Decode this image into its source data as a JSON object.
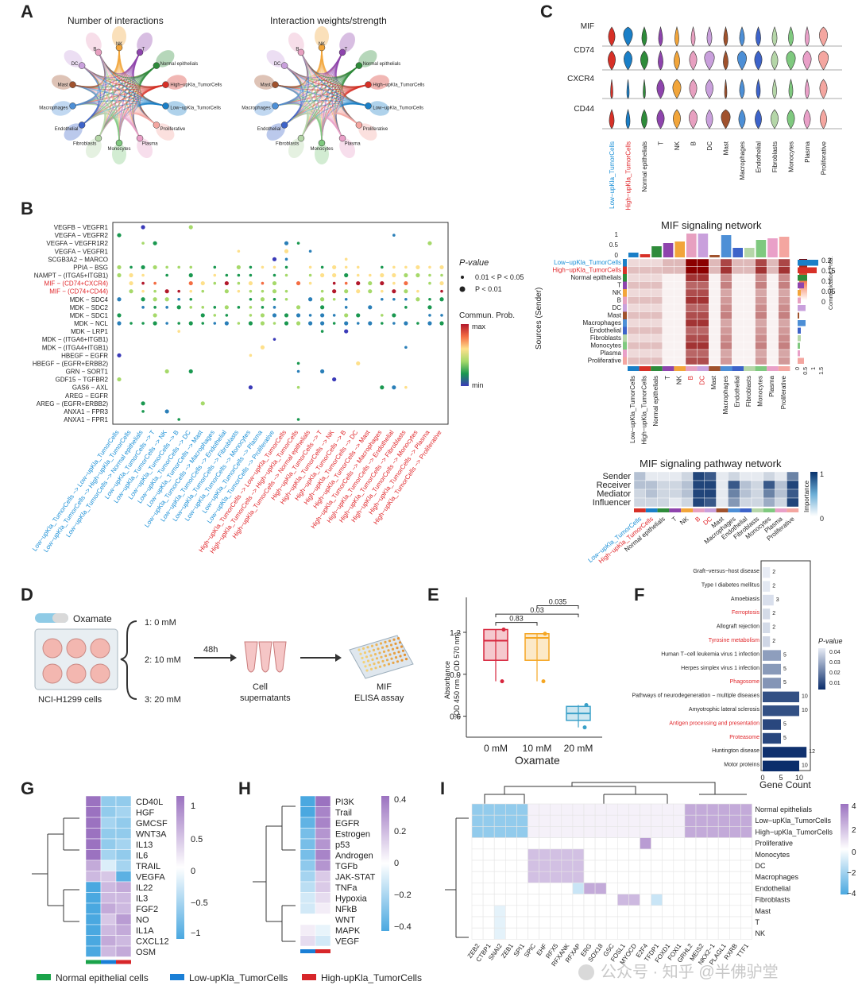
{
  "panel_labels": {
    "A": "A",
    "B": "B",
    "C": "C",
    "D": "D",
    "E": "E",
    "F": "F",
    "G": "G",
    "H": "H",
    "I": "I"
  },
  "panel_a": {
    "titles": [
      "Number of interactions",
      "Interaction weights/strength"
    ],
    "nodes": [
      "NK",
      "T",
      "Normal epithelials",
      "High−upKla_TumorCells",
      "Low−upKla_TumorCells",
      "Proliferative",
      "Plasma",
      "Monocytes",
      "Fibroblasts",
      "Endothelial",
      "Macrophages",
      "Mast",
      "DC",
      "B"
    ],
    "node_colors": [
      "#f2a53a",
      "#8e44ad",
      "#2e8b3a",
      "#d73027",
      "#1a7fc7",
      "#f4a6a0",
      "#e9a0c8",
      "#7fc97f",
      "#b5d6a8",
      "#3d63c9",
      "#4d8fd6",
      "#a0522d",
      "#c9a0dc",
      "#e7a0c0"
    ]
  },
  "panel_b": {
    "ylabels": [
      "VEGFB − VEGFR1",
      "VEGFA − VEGFR2",
      "VEGFA − VEGFR1R2",
      "VEGFA − VEGFR1",
      "SCGB3A2 − MARCO",
      "PPIA − BSG",
      "NAMPT − (ITGA5+ITGB1)",
      "MIF − (CD74+CXCR4)",
      "MIF − (CD74+CD44)",
      "MDK − SDC4",
      "MDK − SDC2",
      "MDK − SDC1",
      "MDK − NCL",
      "MDK − LRP1",
      "MDK − (ITGA6+ITGB1)",
      "MDK − (ITGA4+ITGB1)",
      "HBEGF − EGFR",
      "HBEGF − (EGFR+ERBB2)",
      "GRN − SORT1",
      "GDF15 − TGFBR2",
      "GAS6 − AXL",
      "AREG − EGFR",
      "AREG − (EGFR+ERBB2)",
      "ANXA1 − FPR3",
      "ANXA1 − FPR1"
    ],
    "red_rows": [
      7,
      8
    ],
    "xlabels": [
      "Low−upKla_TumorCells −> Low−upKla_TumorCells",
      "Low−upKla_TumorCells −> High−upKla_TumorCells",
      "Low−upKla_TumorCells −> Normal epithelials",
      "Low−upKla_TumorCells −> T",
      "Low−upKla_TumorCells −> NK",
      "Low−upKla_TumorCells −> B",
      "Low−upKla_TumorCells −> DC",
      "Low−upKla_TumorCells −> Mast",
      "Low−upKla_TumorCells −> Macrophages",
      "Low−upKla_TumorCells −> Endothelial",
      "Low−upKla_TumorCells −> Fibroblasts",
      "Low−upKla_TumorCells −> Monocytes",
      "Low−upKla_TumorCells −> Plasma",
      "Low−upKla_TumorCells −> Proliferative",
      "High−upKla_TumorCells −> Low−upKla_TumorCells",
      "High−upKla_TumorCells −> High−upKla_TumorCells",
      "High−upKla_TumorCells −> Normal epithelials",
      "High−upKla_TumorCells −> T",
      "High−upKla_TumorCells −> NK",
      "High−upKla_TumorCells −> B",
      "High−upKla_TumorCells −> DC",
      "High−upKla_TumorCells −> Mast",
      "High−upKla_TumorCells −> Macrophages",
      "High−upKla_TumorCells −> Endothelial",
      "High−upKla_TumorCells −> Fibroblasts",
      "High−upKla_TumorCells −> Monocytes",
      "High−upKla_TumorCells −> Plasma",
      "High−upKla_TumorCells −> Proliferative"
    ],
    "pvalue_title": "P-value",
    "pvalue_items": [
      "0.01 < P < 0.05",
      "P < 0.01"
    ],
    "prob_title": "Commun. Prob.",
    "prob_max": "max",
    "prob_min": "min"
  },
  "panel_c": {
    "genes": [
      "MIF",
      "CD74",
      "CXCR4",
      "CD44"
    ],
    "cells": [
      "Low−upKla_TumorCells",
      "High−upKla_TumorCells",
      "Normal epithelials",
      "T",
      "NK",
      "B",
      "DC",
      "Mast",
      "Macrophages",
      "Endothelial",
      "Fibroblasts",
      "Monocytes",
      "Plasma",
      "Proliferative"
    ],
    "cell_colors": [
      "#d73027",
      "#1a7fc7",
      "#2e8b3a",
      "#8e44ad",
      "#f2a53a",
      "#e7a0c0",
      "#c9a0dc",
      "#a0522d",
      "#4d8fd6",
      "#3d63c9",
      "#b5d6a8",
      "#7fc97f",
      "#e9a0c8",
      "#f4a6a0"
    ],
    "levels": [
      [
        0.5,
        0.8,
        0.3,
        0.2,
        0.2,
        0.2,
        0.3,
        0.2,
        0.3,
        0.3,
        0.3,
        0.3,
        0.2,
        0.7
      ],
      [
        0.6,
        0.7,
        0.6,
        0.3,
        0.4,
        0.6,
        0.9,
        0.3,
        0.8,
        0.6,
        0.5,
        0.8,
        0.7,
        0.9
      ],
      [
        0.0,
        0.0,
        0.0,
        0.6,
        0.7,
        0.6,
        0.6,
        0.0,
        0.3,
        0.2,
        0.2,
        0.2,
        0.2,
        0.6
      ],
      [
        0.3,
        0.2,
        0.4,
        0.6,
        0.6,
        0.7,
        0.5,
        0.8,
        0.5,
        0.5,
        0.6,
        0.6,
        0.5,
        0.5
      ]
    ]
  },
  "panel_c_network": {
    "title": "MIF signaling network",
    "rows": [
      "Low−upKla_TumorCells",
      "High−upKla_TumorCells",
      "Normal epithelials",
      "T",
      "NK",
      "B",
      "DC",
      "Mast",
      "Macrophages",
      "Endothelial",
      "Fibroblasts",
      "Monocytes",
      "Plasma",
      "Proliferative"
    ],
    "ylabel": "Sources (Sender)",
    "legend_title": "Communication Prob.",
    "legend_ticks": [
      "0.2",
      "0.15",
      "0.1",
      "0.05",
      "0"
    ],
    "top_ticks": [
      "1",
      "0.5",
      "0"
    ],
    "side_ticks": [
      "0",
      "0.5",
      "1",
      "1.5"
    ]
  },
  "panel_c_pathway": {
    "title": "MIF signaling pathway network",
    "rows": [
      "Sender",
      "Receiver",
      "Mediator",
      "Influencer"
    ],
    "legend_title": "Importance",
    "legend_ticks": [
      "1",
      "0"
    ],
    "values": [
      [
        0.3,
        0.1,
        0.1,
        0.1,
        0.2,
        0.9,
        0.8,
        0.1,
        0.2,
        0.1,
        0.1,
        0.2,
        0.1,
        0.6
      ],
      [
        0.3,
        0.3,
        0.2,
        0.2,
        0.3,
        0.9,
        0.9,
        0.1,
        0.8,
        0.3,
        0.2,
        0.8,
        0.3,
        0.9
      ],
      [
        0.2,
        0.3,
        0.2,
        0.2,
        0.3,
        0.9,
        0.9,
        0.1,
        0.6,
        0.3,
        0.2,
        0.6,
        0.3,
        0.8
      ],
      [
        0.2,
        0.2,
        0.2,
        0.1,
        0.2,
        0.9,
        0.8,
        0.1,
        0.5,
        0.2,
        0.2,
        0.4,
        0.2,
        0.9
      ]
    ]
  },
  "panel_d": {
    "reagent": "Oxamate",
    "cells": "NCI-H1299 cells",
    "doses": [
      "1: 0 mM",
      "2: 10 mM",
      "3: 20 mM"
    ],
    "time": "48h",
    "supernatant": [
      "Cell",
      "supernatants"
    ],
    "assay": [
      "MIF",
      "ELISA assay"
    ]
  },
  "chart_data": [
    {
      "type": "box",
      "panel": "E",
      "categories": [
        "0 mM",
        "10 mM",
        "20 mM"
      ],
      "xlabel": "Oxamate",
      "ylabel": "Absorbance (OD 450 nm − OD 570 nm)",
      "ylim": [
        0.45,
        1.45
      ],
      "yticks": [
        0.6,
        0.9,
        1.2
      ],
      "boxes": [
        {
          "min": 0.85,
          "q1": 1.0,
          "median": 1.14,
          "q3": 1.22,
          "max": 1.22,
          "color": "#d7263d"
        },
        {
          "min": 0.85,
          "q1": 1.0,
          "median": 1.16,
          "q3": 1.19,
          "max": 1.19,
          "color": "#f5a623"
        },
        {
          "min": 0.52,
          "q1": 0.57,
          "median": 0.62,
          "q3": 0.67,
          "max": 0.68,
          "color": "#3aa0c8"
        }
      ],
      "annotations": [
        {
          "pair": [
            "0 mM",
            "10 mM"
          ],
          "p": "0.83"
        },
        {
          "pair": [
            "0 mM",
            "20 mM"
          ],
          "p": "0.03"
        },
        {
          "pair": [
            "10 mM",
            "20 mM"
          ],
          "p": "0.035"
        }
      ]
    },
    {
      "type": "bar",
      "panel": "F",
      "orientation": "horizontal",
      "categories": [
        "Graft−versus−host disease",
        "Type I diabetes mellitus",
        "Amoebiasis",
        "Ferroptosis",
        "Allograft rejection",
        "Tyrosine metabolism",
        "Human T−cell leukemia virus 1 infection",
        "Herpes simplex virus 1 infection",
        "Phagosome",
        "Pathways of neurodegeneration − multiple diseases",
        "Amyotrophic lateral sclerosis",
        "Antigen processing and presentation",
        "Proteasome",
        "Huntington disease",
        "Motor proteins"
      ],
      "values": [
        2,
        2,
        3,
        2,
        2,
        2,
        5,
        5,
        5,
        10,
        10,
        5,
        5,
        12,
        10
      ],
      "pvalue": [
        0.048,
        0.047,
        0.045,
        0.044,
        0.044,
        0.043,
        0.03,
        0.029,
        0.028,
        0.012,
        0.012,
        0.01,
        0.01,
        0.005,
        0.004
      ],
      "red_categories": [
        "Ferroptosis",
        "Tyrosine metabolism",
        "Phagosome",
        "Antigen processing and presentation",
        "Proteasome"
      ],
      "xlabel": "Gene Count",
      "xticks": [
        0,
        5,
        10
      ],
      "legend_title": "P-value",
      "legend_ticks": [
        "0.04",
        "0.03",
        "0.02",
        "0.01"
      ]
    },
    {
      "type": "heatmap",
      "panel": "G",
      "rows": [
        "CD40L",
        "HGF",
        "GMCSF",
        "WNT3A",
        "IL13",
        "IL6",
        "TRAIL",
        "VEGFA",
        "IL22",
        "IL3",
        "FGF2",
        "NO",
        "IL1A",
        "CXCL12",
        "OSM"
      ],
      "columns": [
        "Normal epithelial cells",
        "Low-upKla_TumorCells",
        "High-upKla_TumorCells"
      ],
      "values": [
        [
          1.1,
          -0.6,
          -0.6
        ],
        [
          1.1,
          -0.6,
          -0.5
        ],
        [
          1.1,
          -0.5,
          -0.6
        ],
        [
          1.1,
          -0.6,
          -0.6
        ],
        [
          1.1,
          -0.6,
          -0.5
        ],
        [
          1.1,
          -0.5,
          -0.6
        ],
        [
          0.6,
          -0.2,
          -0.5
        ],
        [
          0.5,
          0.4,
          -0.9
        ],
        [
          -1.1,
          0.5,
          0.6
        ],
        [
          -1.1,
          0.5,
          0.5
        ],
        [
          -1.1,
          0.6,
          0.5
        ],
        [
          -1.1,
          0.4,
          0.7
        ],
        [
          -1.1,
          0.5,
          0.6
        ],
        [
          -1.1,
          0.6,
          0.5
        ],
        [
          -1.1,
          0.5,
          0.6
        ]
      ],
      "colorbar_ticks": [
        "1",
        "0.5",
        "0",
        "−0.5",
        "−1"
      ]
    },
    {
      "type": "heatmap",
      "panel": "H",
      "rows": [
        "PI3K",
        "Trail",
        "EGFR",
        "Estrogen",
        "p53",
        "Androgen",
        "TGFb",
        "JAK-STAT",
        "TNFa",
        "Hypoxia",
        "NFkB",
        "WNT",
        "MAPK",
        "VEGF"
      ],
      "columns": [
        "Low-upKla_TumorCells",
        "High-upKla_TumorCells"
      ],
      "values": [
        [
          -0.4,
          0.4
        ],
        [
          -0.4,
          0.35
        ],
        [
          -0.35,
          0.35
        ],
        [
          -0.3,
          0.3
        ],
        [
          -0.3,
          0.3
        ],
        [
          -0.3,
          0.35
        ],
        [
          -0.25,
          0.3
        ],
        [
          -0.2,
          0.15
        ],
        [
          -0.15,
          0.15
        ],
        [
          -0.1,
          0.1
        ],
        [
          -0.1,
          0.05
        ],
        [
          0.0,
          0.0
        ],
        [
          0.05,
          -0.05
        ],
        [
          0.1,
          -0.1
        ]
      ],
      "colorbar_ticks": [
        "0.4",
        "0.2",
        "0",
        "−0.2",
        "−0.4"
      ]
    },
    {
      "type": "heatmap",
      "panel": "I",
      "rows": [
        "Normal epithelials",
        "Low−upKla_TumorCells",
        "High−upKla_TumorCells",
        "Proliferative",
        "Monocytes",
        "DC",
        "Macrophages",
        "Endothelial",
        "Fibroblasts",
        "Mast",
        "T",
        "NK"
      ],
      "columns": [
        "ZEB2",
        "CTBP1",
        "SNAI2",
        "ZEB1",
        "SPI1",
        "SPIC",
        "EHF",
        "RFX5",
        "RFXANK",
        "RFXAP",
        "ERG",
        "SOX18",
        "GSC",
        "FOSL1",
        "MYOCD",
        "E2F4",
        "TFDP1",
        "FOXD1",
        "FOXI1",
        "GRHL2",
        "MEIS2",
        "NKX2−1",
        "PLAGL1",
        "RXRB",
        "TTF1"
      ],
      "colorbar_ticks": [
        "4",
        "2",
        "0",
        "−2",
        "−4"
      ]
    }
  ],
  "bottom_legend": [
    {
      "label": "Normal epithelial cells",
      "color": "#1aa34a"
    },
    {
      "label": "Low-upKla_TumorCells",
      "color": "#1a7fd6"
    },
    {
      "label": "High-upKla_TumorCells",
      "color": "#d7262a"
    }
  ],
  "watermark": "公众号 · 知乎 @半佛驴堂"
}
